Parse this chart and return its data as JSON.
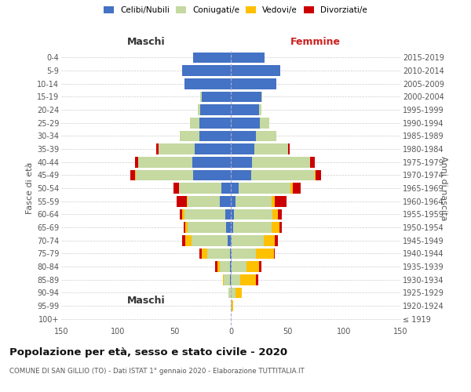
{
  "age_groups": [
    "100+",
    "95-99",
    "90-94",
    "85-89",
    "80-84",
    "75-79",
    "70-74",
    "65-69",
    "60-64",
    "55-59",
    "50-54",
    "45-49",
    "40-44",
    "35-39",
    "30-34",
    "25-29",
    "20-24",
    "15-19",
    "10-14",
    "5-9",
    "0-4"
  ],
  "birth_years": [
    "≤ 1919",
    "1920-1924",
    "1925-1929",
    "1930-1934",
    "1935-1939",
    "1940-1944",
    "1945-1949",
    "1950-1954",
    "1955-1959",
    "1960-1964",
    "1965-1969",
    "1970-1974",
    "1975-1979",
    "1980-1984",
    "1985-1989",
    "1990-1994",
    "1995-1999",
    "2000-2004",
    "2005-2009",
    "2010-2014",
    "2015-2019"
  ],
  "male": {
    "celibi": [
      0,
      0,
      0,
      1,
      1,
      1,
      3,
      4,
      5,
      10,
      8,
      33,
      34,
      32,
      28,
      28,
      27,
      26,
      41,
      43,
      33
    ],
    "coniugati": [
      0,
      0,
      2,
      5,
      9,
      20,
      32,
      34,
      36,
      28,
      38,
      51,
      48,
      32,
      17,
      8,
      2,
      1,
      0,
      0,
      0
    ],
    "vedovi": [
      0,
      0,
      0,
      1,
      2,
      5,
      5,
      2,
      2,
      1,
      0,
      1,
      0,
      0,
      0,
      0,
      0,
      0,
      0,
      0,
      0
    ],
    "divorziati": [
      0,
      0,
      0,
      0,
      2,
      2,
      3,
      2,
      2,
      9,
      5,
      4,
      3,
      2,
      0,
      0,
      0,
      0,
      0,
      0,
      0
    ]
  },
  "female": {
    "nubili": [
      0,
      0,
      0,
      0,
      1,
      1,
      1,
      2,
      3,
      4,
      7,
      18,
      19,
      21,
      22,
      26,
      25,
      27,
      40,
      44,
      30
    ],
    "coniugate": [
      0,
      1,
      4,
      8,
      13,
      21,
      28,
      34,
      34,
      32,
      46,
      56,
      51,
      30,
      18,
      8,
      2,
      1,
      0,
      0,
      0
    ],
    "vedove": [
      0,
      1,
      6,
      14,
      11,
      16,
      10,
      7,
      5,
      3,
      2,
      1,
      0,
      0,
      0,
      0,
      0,
      0,
      0,
      0,
      0
    ],
    "divorziate": [
      0,
      0,
      0,
      2,
      2,
      1,
      3,
      2,
      3,
      10,
      7,
      5,
      4,
      1,
      0,
      0,
      0,
      0,
      0,
      0,
      0
    ]
  },
  "colors": {
    "celibi": "#4472c4",
    "coniugati": "#c5d9a0",
    "vedovi": "#ffc000",
    "divorziati": "#cc0000"
  },
  "title": "Popolazione per età, sesso e stato civile - 2020",
  "subtitle": "COMUNE DI SAN GILLIO (TO) - Dati ISTAT 1° gennaio 2020 - Elaborazione TUTTITALIA.IT",
  "xlim": 150,
  "xlabel_left": "Maschi",
  "xlabel_right": "Femmine",
  "ylabel_left": "Fasce di età",
  "ylabel_right": "Anni di nascita",
  "legend_labels": [
    "Celibi/Nubili",
    "Coniugati/e",
    "Vedovi/e",
    "Divorziati/e"
  ],
  "background_color": "#ffffff",
  "grid_color": "#cccccc"
}
